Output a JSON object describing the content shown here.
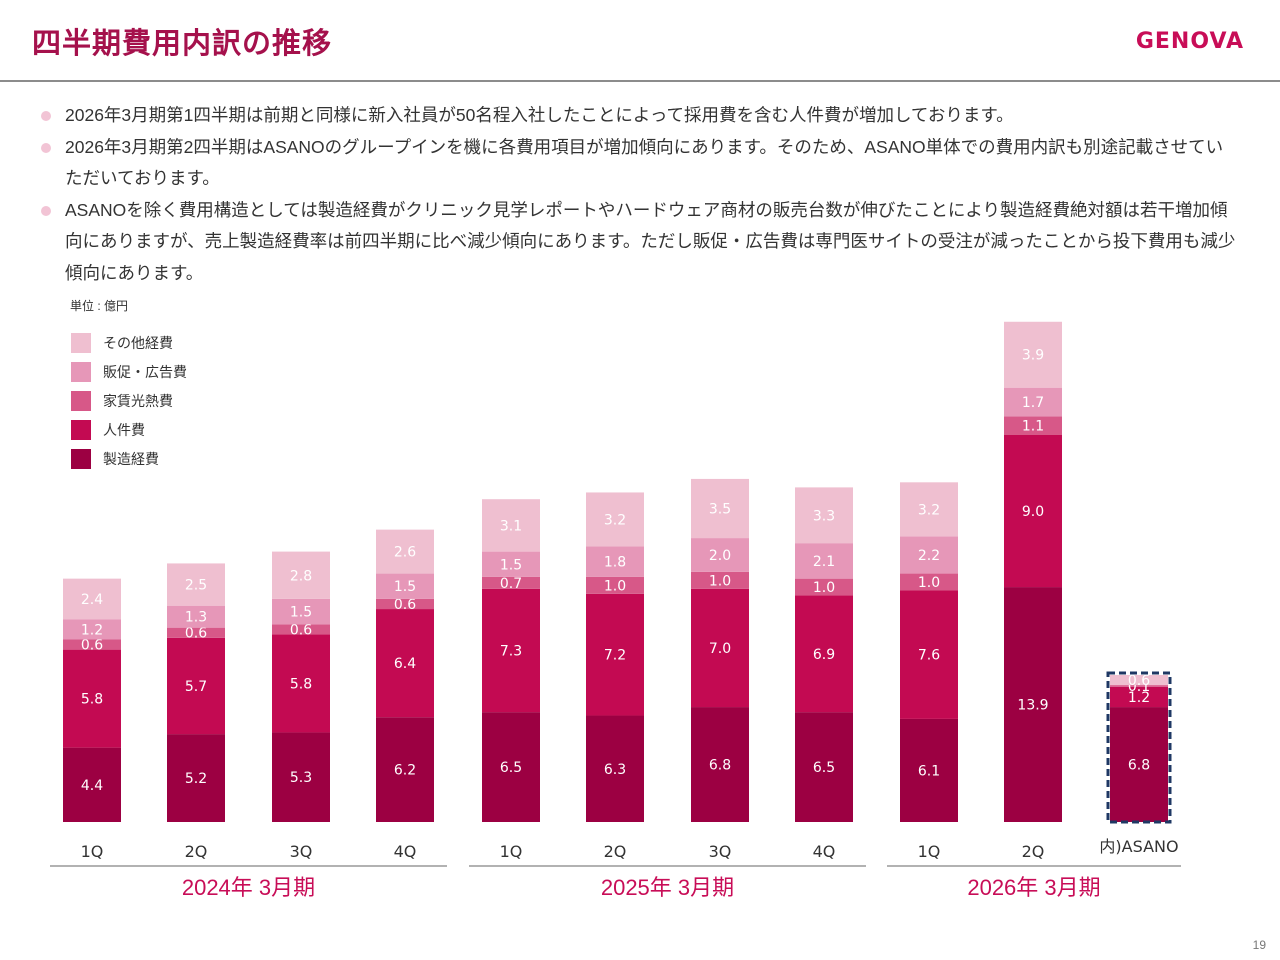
{
  "header": {
    "title": "四半期費用内訳の推移",
    "logo": "GENOVA",
    "accent_color": "#c80d57"
  },
  "bullets": [
    "2026年3月期第1四半期は前期と同様に新入社員が50名程入社したことによって採用費を含む人件費が増加しております。",
    "2026年3月期第2四半期はASANOのグループインを機に各費用項目が増加傾向にあります。そのため、ASANO単体での費用内訳も別途記載させていただいております。",
    "ASANOを除く費用構造としては製造経費がクリニック見学レポートやハードウェア商材の販売台数が伸びたことにより製造経費絶対額は若干増加傾向にありますが、売上製造経費率は前四半期に比べ減少傾向にあります。ただし販促・広告費は専門医サイトの受注が減ったことから投下費用も減少傾向にあります。"
  ],
  "unit_label": "単位 : 億円",
  "page_number": "19",
  "chart_data": {
    "type": "bar",
    "stacked": true,
    "title": "",
    "xlabel": "",
    "ylabel": "",
    "unit": "億円",
    "grid": false,
    "legend_position": "top-left",
    "categories": [
      "1Q",
      "2Q",
      "3Q",
      "4Q",
      "1Q",
      "2Q",
      "3Q",
      "4Q",
      "1Q",
      "2Q",
      "内)ASANO"
    ],
    "groups": [
      {
        "label": "2024年 3月期",
        "category_indices": [
          0,
          1,
          2,
          3
        ]
      },
      {
        "label": "2025年 3月期",
        "category_indices": [
          4,
          5,
          6,
          7
        ]
      },
      {
        "label": "2026年 3月期",
        "category_indices": [
          8,
          9,
          10
        ]
      }
    ],
    "highlighted_category_index": 10,
    "series": [
      {
        "name": "製造経費",
        "color": "#9c0042",
        "values": [
          4.4,
          5.2,
          5.3,
          6.2,
          6.5,
          6.3,
          6.8,
          6.5,
          6.1,
          13.9,
          6.8
        ]
      },
      {
        "name": "人件費",
        "color": "#c30a52",
        "values": [
          5.8,
          5.7,
          5.8,
          6.4,
          7.3,
          7.2,
          7.0,
          6.9,
          7.6,
          9.0,
          1.2
        ]
      },
      {
        "name": "家賃光熱費",
        "color": "#d75888",
        "values": [
          0.6,
          0.6,
          0.6,
          0.6,
          0.7,
          1.0,
          1.0,
          1.0,
          1.0,
          1.1,
          0.1
        ]
      },
      {
        "name": "販促・広告費",
        "color": "#e697b8",
        "values": [
          1.2,
          1.3,
          1.5,
          1.5,
          1.5,
          1.8,
          2.0,
          2.1,
          2.2,
          1.7,
          null
        ]
      },
      {
        "name": "その他経費",
        "color": "#efbfd0",
        "values": [
          2.4,
          2.5,
          2.8,
          2.6,
          3.1,
          3.2,
          3.5,
          3.3,
          3.2,
          3.9,
          0.6
        ]
      }
    ],
    "legend_order": [
      "その他経費",
      "販促・広告費",
      "家賃光熱費",
      "人件費",
      "製造経費"
    ],
    "highlight_border_color": "#1f3864",
    "axis_line_color": "#999999"
  }
}
